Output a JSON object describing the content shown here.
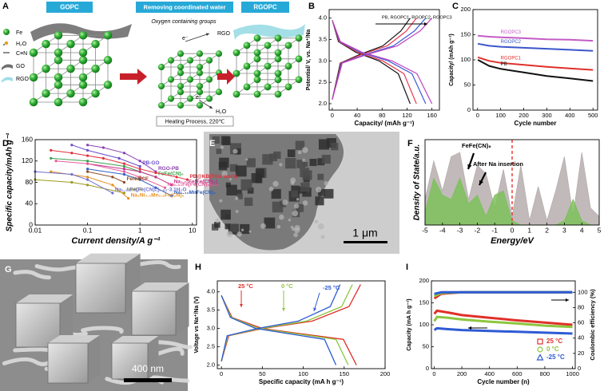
{
  "schematic": {
    "label": "A",
    "steps": [
      "GOPC",
      "Removing coordinated water",
      "RGOPC"
    ],
    "oxygen_note": "Oxygen containing groups",
    "rgo_note": "RGO",
    "water_note": "H₂O",
    "electron": "e⁻",
    "heating": "Heating Process, 220℃",
    "legend": [
      "Fe",
      "H₂O",
      "C≡N",
      "GO",
      "RGO"
    ]
  },
  "micrographs": [
    {
      "label": "E",
      "scale_bar": "1 μm"
    },
    {
      "label": "G",
      "scale_bar": "400 nm"
    }
  ],
  "chart_data": [
    {
      "label": "B",
      "type": "line",
      "xlabel": "Capacity/ (mAh g⁻¹)",
      "ylabel": "Potential/ V, vs. Na⁺/Na",
      "xlim": [
        -5,
        172
      ],
      "ylim": [
        1.85,
        4.2
      ],
      "xticks": [
        0,
        40,
        80,
        120,
        160
      ],
      "yticks": [
        {
          "value": 2,
          "label": "2.0"
        },
        2.5,
        {
          "value": 3,
          "label": "3.0"
        },
        3.5,
        {
          "value": 4,
          "label": "4.0"
        }
      ],
      "annotations": [
        {
          "text": "PB, RGOPC1, RGOPC2, RGOPC3",
          "color": "#000000"
        }
      ],
      "series": [
        {
          "color": "#111111",
          "x": [
            0,
            10,
            38,
            75,
            106,
            125
          ],
          "values": [
            3.95,
            3.45,
            3.2,
            3.0,
            2.7,
            2.0
          ]
        },
        {
          "color": "#111111",
          "x": [
            0,
            13,
            44,
            81,
            110,
            125
          ],
          "values": [
            2.1,
            2.95,
            3.15,
            3.35,
            3.7,
            4.0
          ]
        },
        {
          "color": "#e8384f",
          "x": [
            0,
            11,
            41,
            81,
            115,
            135
          ],
          "values": [
            3.95,
            3.45,
            3.2,
            3.0,
            2.7,
            2.0
          ]
        },
        {
          "color": "#e8384f",
          "x": [
            0,
            14,
            47,
            88,
            119,
            135
          ],
          "values": [
            2.1,
            2.95,
            3.15,
            3.35,
            3.7,
            4.0
          ]
        },
        {
          "color": "#3b5bd6",
          "x": [
            0,
            12,
            45,
            90,
            128,
            150
          ],
          "values": [
            3.95,
            3.45,
            3.2,
            3.0,
            2.7,
            2.0
          ]
        },
        {
          "color": "#3b5bd6",
          "x": [
            0,
            15,
            53,
            98,
            132,
            150
          ],
          "values": [
            2.1,
            2.95,
            3.15,
            3.35,
            3.7,
            4.0
          ]
        },
        {
          "color": "#c040c0",
          "x": [
            0,
            13,
            48,
            96,
            136,
            160
          ],
          "values": [
            3.95,
            3.45,
            3.2,
            3.0,
            2.7,
            2.0
          ]
        },
        {
          "color": "#c040c0",
          "x": [
            0,
            16,
            56,
            104,
            141,
            160
          ],
          "values": [
            2.1,
            2.95,
            3.15,
            3.35,
            3.7,
            4.0
          ]
        }
      ]
    },
    {
      "label": "C",
      "type": "line",
      "xlabel": "Cycle number",
      "ylabel": "Capacity/ (mAh g⁻¹)",
      "xlim": [
        -20,
        520
      ],
      "ylim": [
        0,
        200
      ],
      "xticks": [
        0,
        100,
        200,
        300,
        400,
        500
      ],
      "yticks": [
        0,
        50,
        100,
        150,
        200
      ],
      "x": [
        1,
        50,
        100,
        200,
        300,
        400,
        500
      ],
      "series": [
        {
          "name": "RGOPC3",
          "color": "#c35cc5",
          "values": [
            148,
            146,
            145,
            143,
            141,
            140,
            138
          ]
        },
        {
          "name": "RGOPC2",
          "color": "#3a56c9",
          "values": [
            132,
            128,
            126,
            124,
            122,
            120,
            118
          ]
        },
        {
          "name": "RGOPC1",
          "color": "#e0302a",
          "values": [
            105,
            98,
            94,
            90,
            86,
            83,
            80
          ]
        },
        {
          "name": "PB",
          "color": "#111111",
          "values": [
            100,
            88,
            82,
            75,
            68,
            63,
            58
          ]
        }
      ]
    },
    {
      "label": "D",
      "type": "line",
      "xscale": "log",
      "xlabel": "Current density/A g⁻¹",
      "ylabel": "Specific capacity/mAh g⁻¹",
      "xlim": [
        0.01,
        12
      ],
      "ylim": [
        0,
        160
      ],
      "xticks": [
        0.01,
        0.1,
        1,
        10
      ],
      "yticks": [
        0,
        40,
        80,
        120,
        160
      ],
      "series": [
        {
          "name": "RGO-PB",
          "color": "#8a3fb0",
          "x": [
            0.1,
            0.2,
            0.5,
            1,
            2
          ],
          "values": [
            150,
            145,
            135,
            120,
            100
          ]
        },
        {
          "name": "PB-GO",
          "color": "#6a4fc8",
          "x": [
            0.05,
            0.1,
            0.4,
            1
          ],
          "values": [
            150,
            140,
            125,
            110
          ]
        },
        {
          "name": "FeFe(CN)₆",
          "color": "#3aa04a",
          "x": [
            0.02,
            0.1,
            0.5,
            1,
            2
          ],
          "values": [
            125,
            120,
            110,
            100,
            90
          ]
        },
        {
          "name": "PB@KB(This work)",
          "color": "#e0303a",
          "x": [
            0.02,
            0.05,
            0.1,
            0.2,
            0.5,
            1,
            2,
            5,
            8
          ],
          "values": [
            140,
            135,
            130,
            125,
            115,
            105,
            98,
            90,
            85
          ]
        },
        {
          "name": "Na₁.₇₀Fe[Fe(CN)₆]",
          "color": "#c0308a",
          "x": [
            0.1,
            0.5,
            1,
            2,
            4
          ],
          "values": [
            115,
            105,
            100,
            90,
            75
          ]
        },
        {
          "name": "Na₀.₆₁Fe[Fe(CN)₆]₀.₉₄",
          "color": "#e85a9a",
          "x": [
            0.025,
            0.1,
            0.5,
            1,
            3
          ],
          "values": [
            120,
            115,
            100,
            90,
            70
          ]
        },
        {
          "name": "Na₁.₄₀MnFe(CN)₆",
          "color": "#2f5fc0",
          "x": [
            0.1,
            0.5,
            1,
            2,
            4
          ],
          "values": [
            105,
            95,
            85,
            70,
            55
          ]
        },
        {
          "name": "FeNiHCF",
          "color": "#8b4a20",
          "x": [
            0.1,
            0.3,
            0.5
          ],
          "values": [
            100,
            90,
            80
          ]
        },
        {
          "name": "NiHCF",
          "color": "#9a9a20",
          "x": [
            0.01,
            0.05,
            0.1,
            0.5
          ],
          "values": [
            85,
            80,
            75,
            60
          ]
        },
        {
          "name": "Na₂Ni₀.₄Mn₀.₆Fe(CN)₆",
          "color": "#e89020",
          "x": [
            0.02,
            0.1,
            0.3,
            0.6
          ],
          "values": [
            100,
            90,
            75,
            50
          ]
        },
        {
          "name": "Na₁.₃₃Fe[Fe(CN)₆]₀.₈₂·3.1H₂O",
          "color": "#7070d0",
          "x": [
            0.01,
            0.05,
            0.1,
            0.3
          ],
          "values": [
            100,
            95,
            85,
            60
          ]
        }
      ]
    },
    {
      "label": "F",
      "type": "area",
      "xlabel": "Energy/eV",
      "ylabel": "Density of State/a.u.",
      "xlim": [
        -5,
        5
      ],
      "ylim": [
        0,
        1
      ],
      "xticks": [
        -5,
        -4,
        -3,
        -2,
        -1,
        0,
        1,
        2,
        3,
        4,
        5
      ],
      "reference_line": {
        "x": 0,
        "color": "#e8413a"
      },
      "annotations": [
        {
          "text": "FeFe(CN)₆",
          "color": "#000000"
        },
        {
          "text": "After Na insertion",
          "color": "#000000"
        }
      ],
      "x": [
        -5,
        -4.5,
        -4,
        -3.5,
        -3,
        -2.5,
        -2,
        -1.5,
        -1,
        -0.5,
        0,
        0.5,
        1,
        1.5,
        2,
        2.5,
        3,
        3.5,
        4,
        4.5,
        5
      ],
      "series": [
        {
          "color": "#b7aeae",
          "values": [
            0.3,
            0.75,
            0.4,
            0.8,
            0.85,
            0.3,
            0.7,
            0.6,
            0.2,
            0.65,
            0.1,
            0.7,
            0.05,
            0.45,
            0.05,
            0.4,
            0.8,
            0.1,
            0.85,
            0.2,
            0.1
          ]
        },
        {
          "color": "#7cc15a",
          "values": [
            0.15,
            0.55,
            0.35,
            0.3,
            0.55,
            0.25,
            0.35,
            0.1,
            0.35,
            0.4,
            0.05,
            0,
            0,
            0,
            0,
            0,
            0.05,
            0.3,
            0.05,
            0,
            0
          ]
        }
      ]
    },
    {
      "label": "H",
      "type": "line",
      "xlabel": "Specific capacity   (mA h g⁻¹)",
      "ylabel": "Voltage vs Na⁺/Na (V)",
      "xlim": [
        -5,
        200
      ],
      "ylim": [
        1.9,
        4.3
      ],
      "xticks": [
        0,
        50,
        100,
        150,
        200
      ],
      "yticks": [
        {
          "value": 2,
          "label": "2.0"
        },
        2.5,
        {
          "value": 3,
          "label": "3.0"
        },
        3.5,
        {
          "value": 4,
          "label": "4.0"
        }
      ],
      "annotations": [
        {
          "text": "25 °C",
          "color": "#e0302a"
        },
        {
          "text": "0 °C",
          "color": "#8cc63f"
        },
        {
          "text": "-25 °C",
          "color": "#2e5bd4"
        }
      ],
      "series": [
        {
          "color": "#e0302a",
          "x": [
            0,
            13,
            50,
            99,
            149,
            165
          ],
          "values": [
            3.9,
            3.3,
            3.0,
            2.85,
            2.7,
            2.0
          ]
        },
        {
          "color": "#e0302a",
          "x": [
            0,
            9,
            51,
            111,
            156,
            170
          ],
          "values": [
            2.1,
            2.8,
            3.0,
            3.2,
            3.6,
            4.2
          ]
        },
        {
          "color": "#8cc63f",
          "x": [
            0,
            12,
            46,
            93,
            140,
            155
          ],
          "values": [
            3.9,
            3.3,
            3.0,
            2.85,
            2.7,
            2.0
          ]
        },
        {
          "color": "#8cc63f",
          "x": [
            0,
            8,
            48,
            104,
            147,
            160
          ],
          "values": [
            2.1,
            2.8,
            3.0,
            3.2,
            3.6,
            4.2
          ]
        },
        {
          "color": "#2e5bd4",
          "x": [
            0,
            11,
            42,
            84,
            126,
            140
          ],
          "values": [
            3.9,
            3.3,
            3.0,
            2.85,
            2.7,
            2.0
          ]
        },
        {
          "color": "#2e5bd4",
          "x": [
            0,
            7,
            44,
            94,
            133,
            145
          ],
          "values": [
            2.1,
            2.8,
            3.0,
            3.2,
            3.6,
            4.2
          ]
        }
      ]
    },
    {
      "label": "I",
      "type": "line",
      "xlabel": "Cycle number (n)",
      "ylabel": "Capacity (mA h g⁻¹)",
      "y2label": "Coulombic efficiency (%)",
      "xlim": [
        -20,
        1020
      ],
      "ylim": [
        0,
        200
      ],
      "y2lim": [
        0,
        115
      ],
      "xticks": [
        0,
        200,
        400,
        600,
        800,
        1000
      ],
      "yticks": [
        0,
        50,
        100,
        150,
        200
      ],
      "y2ticks": [
        0,
        20,
        40,
        60,
        80,
        100
      ],
      "legend": "lower right",
      "series": [
        {
          "name": "25 °C",
          "color": "#e0302a",
          "x": [
            1,
            20,
            100,
            200,
            400,
            600,
            800,
            1000
          ],
          "values": [
            125,
            132,
            128,
            122,
            116,
            110,
            105,
            100
          ]
        },
        {
          "name": "0 °C",
          "color": "#8cc63f",
          "x": [
            1,
            20,
            100,
            200,
            400,
            600,
            800,
            1000
          ],
          "values": [
            108,
            118,
            116,
            112,
            107,
            103,
            98,
            95
          ]
        },
        {
          "name": "-25 °C",
          "color": "#2e5bd4",
          "x": [
            1,
            20,
            100,
            200,
            400,
            600,
            800,
            1000
          ],
          "values": [
            88,
            92,
            90,
            88,
            86,
            84,
            82,
            80
          ]
        },
        {
          "color": "#e0302a",
          "axis": "y2",
          "x": [
            1,
            50,
            200,
            1000
          ],
          "values": [
            92,
            98,
            100,
            100
          ]
        },
        {
          "color": "#8cc63f",
          "axis": "y2",
          "x": [
            1,
            50,
            200,
            1000
          ],
          "values": [
            95,
            99,
            100,
            100
          ]
        },
        {
          "color": "#2e5bd4",
          "axis": "y2",
          "x": [
            1,
            50,
            200,
            1000
          ],
          "values": [
            98,
            100,
            100,
            100
          ]
        }
      ]
    }
  ]
}
